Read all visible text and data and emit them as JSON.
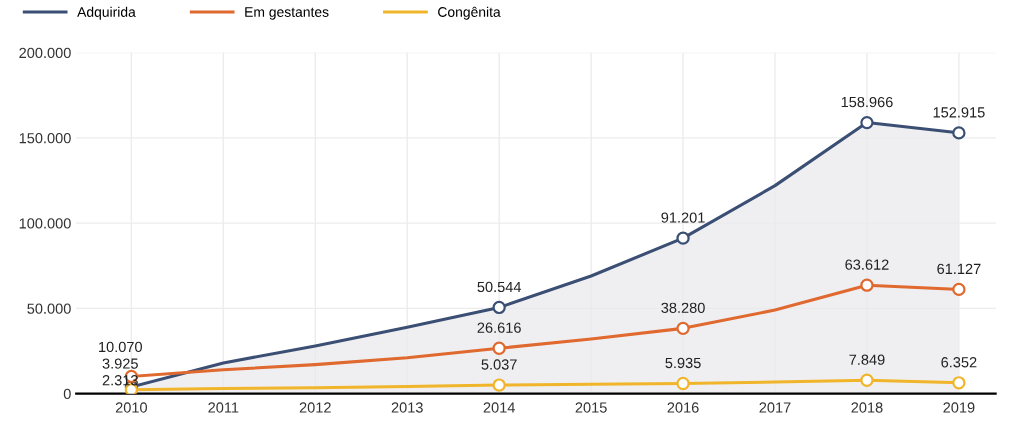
{
  "chart_data": {
    "type": "line",
    "categories": [
      "2010",
      "2011",
      "2012",
      "2013",
      "2014",
      "2015",
      "2016",
      "2017",
      "2018",
      "2019"
    ],
    "series": [
      {
        "name": "Adquirida",
        "color": "#3b4f74",
        "type": "area",
        "values": [
          3925,
          18000,
          28000,
          39000,
          50544,
          69000,
          91201,
          122000,
          158966,
          152915
        ],
        "value_labels": [
          "3.925",
          null,
          null,
          null,
          "50.544",
          null,
          "91.201",
          null,
          "158.966",
          "152.915"
        ]
      },
      {
        "name": "Em gestantes",
        "color": "#e0692f",
        "values": [
          10070,
          14000,
          17000,
          21000,
          26616,
          32000,
          38280,
          49000,
          63612,
          61127
        ],
        "value_labels": [
          "10.070",
          null,
          null,
          null,
          "26.616",
          null,
          "38.280",
          null,
          "63.612",
          "61.127"
        ]
      },
      {
        "name": "Congênita",
        "color": "#f0b52a",
        "values": [
          2313,
          3000,
          3500,
          4200,
          5037,
          5500,
          5935,
          6800,
          7849,
          6352
        ],
        "value_labels": [
          "2.313",
          null,
          null,
          null,
          "5.037",
          null,
          "5.935",
          null,
          "7.849",
          "6.352"
        ]
      }
    ],
    "ylim": [
      0,
      200000
    ],
    "yticks": [
      0,
      {
        "value": 50000,
        "label": "50.000"
      },
      {
        "value": 100000,
        "label": "100.000"
      },
      {
        "value": 150000,
        "label": "150.000"
      },
      {
        "value": 200000,
        "label": "200.000"
      }
    ],
    "grid": true,
    "legend": "top left",
    "marker": "circle"
  }
}
